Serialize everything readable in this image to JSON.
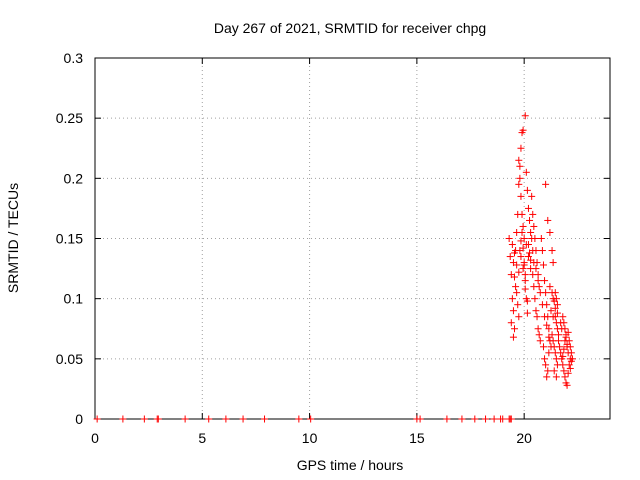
{
  "chart_data": {
    "type": "scatter",
    "title": "Day 267 of 2021, SRMTID for receiver chpg",
    "xlabel": "GPS time / hours",
    "ylabel": "SRMTID / TECUs",
    "xlim": [
      0,
      24
    ],
    "ylim": [
      0,
      0.3
    ],
    "xticks": [
      0,
      5,
      10,
      15,
      20
    ],
    "xtick_labels": [
      "0",
      "5",
      "10",
      "15",
      "20"
    ],
    "yticks": [
      0,
      0.05,
      0.1,
      0.15,
      0.2,
      0.25,
      0.3
    ],
    "ytick_labels": [
      "0",
      "0.05",
      "0.1",
      "0.15",
      "0.2",
      "0.25",
      "0.3"
    ],
    "grid": true,
    "marker": "+",
    "marker_color": "#ff0000",
    "series": [
      {
        "name": "SRMTID",
        "points": [
          [
            0.1,
            0
          ],
          [
            1.3,
            0
          ],
          [
            2.3,
            0
          ],
          [
            2.9,
            0
          ],
          [
            2.95,
            0
          ],
          [
            4.2,
            0
          ],
          [
            5.3,
            0
          ],
          [
            6.1,
            0
          ],
          [
            6.9,
            0
          ],
          [
            7.9,
            0
          ],
          [
            9.5,
            0
          ],
          [
            10.05,
            0
          ],
          [
            15.0,
            0
          ],
          [
            15.15,
            0
          ],
          [
            16.4,
            0
          ],
          [
            17.1,
            0
          ],
          [
            17.7,
            0
          ],
          [
            18.2,
            0
          ],
          [
            18.6,
            0
          ],
          [
            18.9,
            0
          ],
          [
            19.0,
            0
          ],
          [
            19.3,
            0
          ],
          [
            19.35,
            0
          ],
          [
            19.4,
            0
          ],
          [
            19.3,
            0.15
          ],
          [
            19.35,
            0.135
          ],
          [
            19.4,
            0.12
          ],
          [
            19.45,
            0.1
          ],
          [
            19.5,
            0.09
          ],
          [
            19.55,
            0.075
          ],
          [
            19.4,
            0.08
          ],
          [
            19.5,
            0.068
          ],
          [
            19.6,
            0.14
          ],
          [
            19.65,
            0.155
          ],
          [
            19.7,
            0.17
          ],
          [
            19.75,
            0.195
          ],
          [
            19.8,
            0.21
          ],
          [
            19.85,
            0.225
          ],
          [
            19.9,
            0.238
          ],
          [
            19.95,
            0.24
          ],
          [
            19.75,
            0.215
          ],
          [
            19.8,
            0.2
          ],
          [
            19.85,
            0.185
          ],
          [
            19.9,
            0.17
          ],
          [
            19.95,
            0.16
          ],
          [
            20.0,
            0.15
          ],
          [
            20.0,
            0.13
          ],
          [
            20.05,
            0.115
          ],
          [
            20.1,
            0.1
          ],
          [
            20.15,
            0.088
          ],
          [
            20.05,
            0.252
          ],
          [
            20.1,
            0.205
          ],
          [
            20.15,
            0.19
          ],
          [
            20.2,
            0.175
          ],
          [
            20.25,
            0.165
          ],
          [
            20.3,
            0.155
          ],
          [
            19.5,
            0.13
          ],
          [
            19.55,
            0.118
          ],
          [
            19.6,
            0.11
          ],
          [
            19.65,
            0.105
          ],
          [
            19.7,
            0.095
          ],
          [
            19.75,
            0.085
          ],
          [
            19.8,
            0.14
          ],
          [
            19.85,
            0.148
          ],
          [
            19.9,
            0.155
          ],
          [
            19.95,
            0.142
          ],
          [
            20.0,
            0.128
          ],
          [
            20.05,
            0.12
          ],
          [
            20.1,
            0.145
          ],
          [
            20.2,
            0.135
          ],
          [
            20.3,
            0.125
          ],
          [
            20.4,
            0.14
          ],
          [
            20.35,
            0.185
          ],
          [
            20.4,
            0.17
          ],
          [
            20.45,
            0.16
          ],
          [
            20.5,
            0.15
          ],
          [
            20.55,
            0.14
          ],
          [
            20.6,
            0.13
          ],
          [
            20.65,
            0.12
          ],
          [
            20.7,
            0.11
          ],
          [
            20.4,
            0.12
          ],
          [
            20.45,
            0.11
          ],
          [
            20.5,
            0.1
          ],
          [
            20.55,
            0.09
          ],
          [
            20.6,
            0.085
          ],
          [
            20.65,
            0.075
          ],
          [
            20.7,
            0.07
          ],
          [
            20.75,
            0.065
          ],
          [
            20.8,
            0.15
          ],
          [
            20.85,
            0.14
          ],
          [
            20.9,
            0.128
          ],
          [
            20.95,
            0.115
          ],
          [
            21.0,
            0.105
          ],
          [
            21.05,
            0.095
          ],
          [
            21.1,
            0.085
          ],
          [
            21.15,
            0.075
          ],
          [
            20.9,
            0.06
          ],
          [
            20.95,
            0.05
          ],
          [
            21.0,
            0.045
          ],
          [
            21.05,
            0.035
          ],
          [
            21.1,
            0.04
          ],
          [
            21.15,
            0.055
          ],
          [
            21.2,
            0.065
          ],
          [
            21.25,
            0.06
          ],
          [
            21.0,
            0.195
          ],
          [
            21.1,
            0.165
          ],
          [
            21.2,
            0.155
          ],
          [
            21.3,
            0.14
          ],
          [
            21.35,
            0.13
          ],
          [
            21.2,
            0.11
          ],
          [
            21.3,
            0.105
          ],
          [
            21.35,
            0.1
          ],
          [
            21.4,
            0.098
          ],
          [
            21.45,
            0.105
          ],
          [
            21.5,
            0.1
          ],
          [
            21.55,
            0.095
          ],
          [
            21.45,
            0.085
          ],
          [
            21.5,
            0.08
          ],
          [
            21.55,
            0.075
          ],
          [
            21.6,
            0.07
          ],
          [
            21.3,
            0.07
          ],
          [
            21.35,
            0.065
          ],
          [
            21.4,
            0.06
          ],
          [
            21.45,
            0.055
          ],
          [
            21.5,
            0.05
          ],
          [
            21.55,
            0.045
          ],
          [
            21.4,
            0.04
          ],
          [
            21.5,
            0.035
          ],
          [
            21.6,
            0.065
          ],
          [
            21.65,
            0.06
          ],
          [
            21.7,
            0.055
          ],
          [
            21.75,
            0.05
          ],
          [
            21.8,
            0.052
          ],
          [
            21.85,
            0.058
          ],
          [
            21.9,
            0.065
          ],
          [
            21.95,
            0.07
          ],
          [
            21.7,
            0.08
          ],
          [
            21.75,
            0.075
          ],
          [
            21.8,
            0.085
          ],
          [
            21.85,
            0.08
          ],
          [
            21.9,
            0.075
          ],
          [
            21.95,
            0.068
          ],
          [
            22.0,
            0.062
          ],
          [
            22.05,
            0.055
          ],
          [
            21.8,
            0.045
          ],
          [
            21.85,
            0.04
          ],
          [
            21.9,
            0.035
          ],
          [
            21.95,
            0.03
          ],
          [
            22.0,
            0.028
          ],
          [
            22.05,
            0.038
          ],
          [
            22.1,
            0.045
          ],
          [
            22.15,
            0.05
          ],
          [
            22.0,
            0.06
          ],
          [
            22.05,
            0.072
          ],
          [
            22.1,
            0.065
          ],
          [
            22.15,
            0.06
          ],
          [
            22.2,
            0.055
          ],
          [
            22.25,
            0.05
          ],
          [
            22.15,
            0.042
          ],
          [
            22.2,
            0.048
          ],
          [
            20.2,
            0.145
          ],
          [
            20.25,
            0.138
          ],
          [
            20.3,
            0.132
          ],
          [
            20.35,
            0.15
          ],
          [
            20.45,
            0.13
          ],
          [
            20.55,
            0.125
          ],
          [
            20.65,
            0.115
          ],
          [
            20.75,
            0.105
          ],
          [
            20.85,
            0.095
          ],
          [
            20.95,
            0.085
          ],
          [
            21.05,
            0.078
          ],
          [
            21.15,
            0.068
          ],
          [
            21.25,
            0.09
          ],
          [
            21.35,
            0.085
          ],
          [
            21.45,
            0.092
          ],
          [
            21.55,
            0.088
          ],
          [
            19.45,
            0.145
          ],
          [
            19.55,
            0.138
          ],
          [
            19.65,
            0.128
          ],
          [
            19.75,
            0.122
          ],
          [
            19.85,
            0.135
          ],
          [
            19.95,
            0.125
          ],
          [
            20.05,
            0.108
          ],
          [
            20.15,
            0.098
          ]
        ]
      }
    ]
  }
}
